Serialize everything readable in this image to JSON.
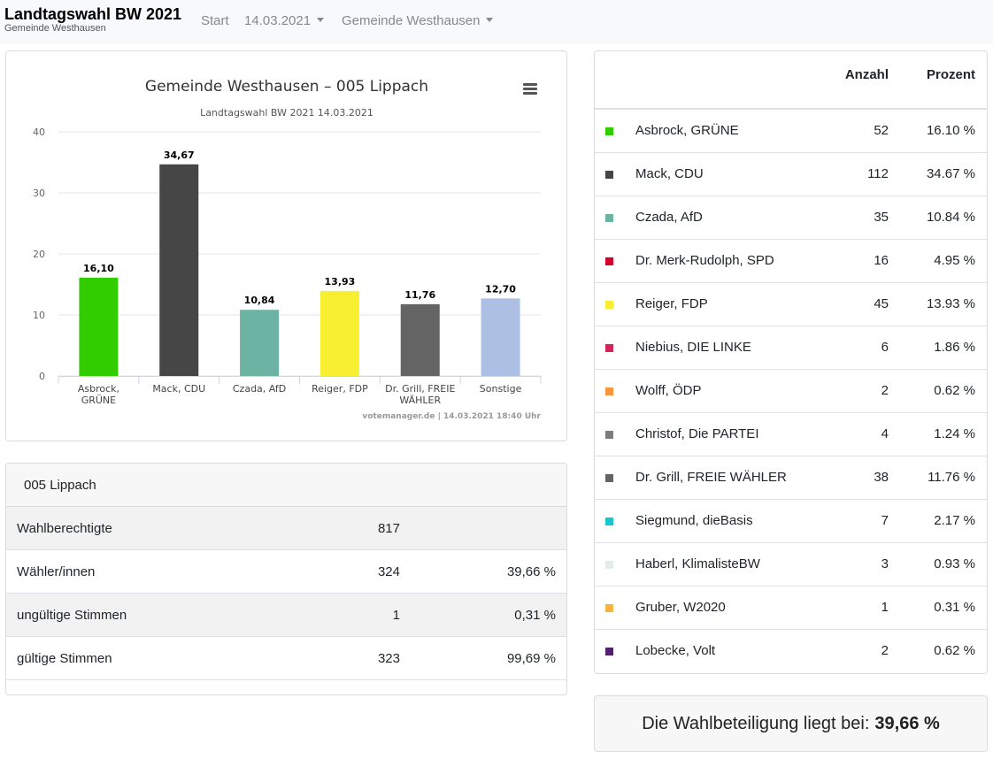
{
  "nav": {
    "title": "Landtagswahl BW 2021",
    "subtitle": "Gemeinde Westhausen",
    "start": "Start",
    "date": "14.03.2021",
    "municipality": "Gemeinde Westhausen"
  },
  "chart_data": {
    "type": "bar",
    "title": "Gemeinde Westhausen – 005 Lippach",
    "subtitle": "Landtagswahl BW 2021 14.03.2021",
    "categories": [
      [
        "Asbrock,",
        "GRÜNE"
      ],
      [
        "Mack, CDU"
      ],
      [
        "Czada, AfD"
      ],
      [
        "Reiger, FDP"
      ],
      [
        "Dr. Grill, FREIE",
        "WÄHLER"
      ],
      [
        "Sonstige"
      ]
    ],
    "values": [
      16.1,
      34.67,
      10.84,
      13.93,
      11.76,
      12.7
    ],
    "value_labels": [
      "16,10",
      "34,67",
      "10,84",
      "13,93",
      "11,76",
      "12,70"
    ],
    "colors": [
      "#32cd00",
      "#464646",
      "#6db3a3",
      "#f8ef32",
      "#646464",
      "#adc0e4"
    ],
    "ylim": [
      0,
      40
    ],
    "yticks": [
      0,
      10,
      20,
      30,
      40
    ],
    "grid": true,
    "credits": "votemanager.de | 14.03.2021 18:40 Uhr"
  },
  "summary": {
    "title": "005 Lippach",
    "rows": [
      {
        "label": "Wahlberechtigte",
        "count": "817",
        "percent": ""
      },
      {
        "label": "Wähler/innen",
        "count": "324",
        "percent": "39,66 %"
      },
      {
        "label": "ungültige Stimmen",
        "count": "1",
        "percent": "0,31 %"
      },
      {
        "label": "gültige Stimmen",
        "count": "323",
        "percent": "99,69 %"
      }
    ]
  },
  "results": {
    "col_count": "Anzahl",
    "col_percent": "Prozent",
    "rows": [
      {
        "name": "Asbrock, GRÜNE",
        "count": "52",
        "percent": "16.10 %",
        "color": "#32cd00"
      },
      {
        "name": "Mack, CDU",
        "count": "112",
        "percent": "34.67 %",
        "color": "#464646"
      },
      {
        "name": "Czada, AfD",
        "count": "35",
        "percent": "10.84 %",
        "color": "#6db3a3"
      },
      {
        "name": "Dr. Merk-Rudolph, SPD",
        "count": "16",
        "percent": "4.95 %",
        "color": "#d2002a"
      },
      {
        "name": "Reiger, FDP",
        "count": "45",
        "percent": "13.93 %",
        "color": "#f8ef32"
      },
      {
        "name": "Niebius, DIE LINKE",
        "count": "6",
        "percent": "1.86 %",
        "color": "#d3255a"
      },
      {
        "name": "Wolff, ÖDP",
        "count": "2",
        "percent": "0.62 %",
        "color": "#f7963c"
      },
      {
        "name": "Christof, Die PARTEI",
        "count": "4",
        "percent": "1.24 %",
        "color": "#7d7d7d"
      },
      {
        "name": "Dr. Grill, FREIE WÄHLER",
        "count": "38",
        "percent": "11.76 %",
        "color": "#646464"
      },
      {
        "name": "Siegmund, dieBasis",
        "count": "7",
        "percent": "2.17 %",
        "color": "#18c6cd"
      },
      {
        "name": "Haberl, KlimalisteBW",
        "count": "3",
        "percent": "0.93 %",
        "color": "#e3ebe6"
      },
      {
        "name": "Gruber, W2020",
        "count": "1",
        "percent": "0.31 %",
        "color": "#f5b53c"
      },
      {
        "name": "Lobecke, Volt",
        "count": "2",
        "percent": "0.62 %",
        "color": "#52216e"
      }
    ]
  },
  "turnout": {
    "label": "Die Wahlbeteiligung liegt bei:",
    "value": "39,66 %"
  }
}
